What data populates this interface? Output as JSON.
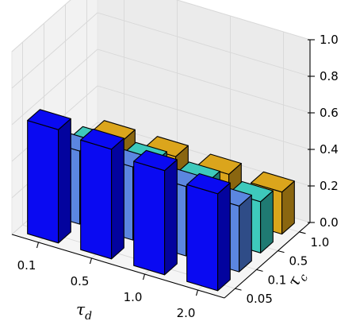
{
  "chart_data": {
    "type": "bar3d",
    "x_name": "τ",
    "x_sub": "d",
    "y_name": "τ",
    "y_sub": "c",
    "x_categories": [
      "0.1",
      "0.5",
      "1.0",
      "2.0"
    ],
    "y_categories": [
      "0.05",
      "0.1",
      "0.5",
      "1.0"
    ],
    "zlim": [
      0,
      1
    ],
    "z_ticks": [
      "0.0",
      "0.2",
      "0.4",
      "0.6",
      "0.8",
      "1.0"
    ],
    "grid": true,
    "series": [
      {
        "values": [
          0.62,
          0.6,
          0.57,
          0.53
        ]
      },
      {
        "values": [
          0.4,
          0.4,
          0.38,
          0.36
        ]
      },
      {
        "values": [
          0.32,
          0.32,
          0.3,
          0.28
        ]
      },
      {
        "values": [
          0.25,
          0.25,
          0.24,
          0.23
        ]
      }
    ],
    "colors": [
      "#0a0af2",
      "#5b86e0",
      "#3ec9bc",
      "#dba51c"
    ],
    "side_colors": [
      "#03039e",
      "#2f4c87",
      "#1f7a72",
      "#8a6610"
    ]
  }
}
